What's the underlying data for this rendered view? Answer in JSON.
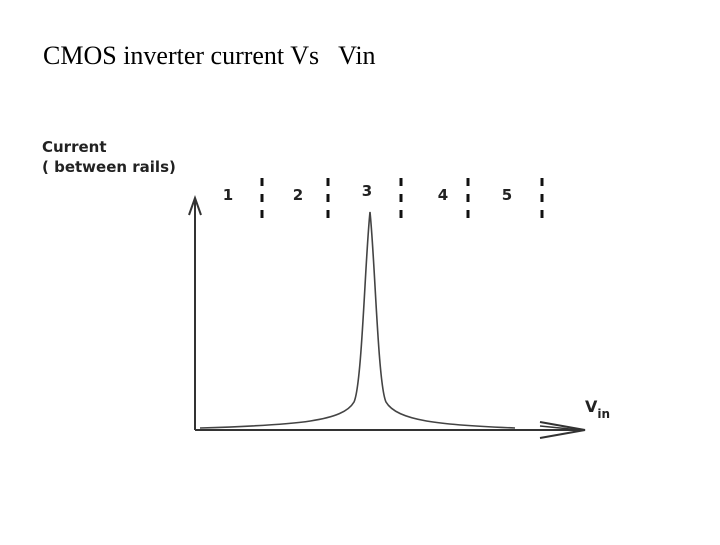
{
  "title": "CMOS inverter current Vs   Vin",
  "y_axis_label": [
    "Current",
    "( between rails)"
  ],
  "x_axis_label": {
    "main": "V",
    "sub": "in"
  },
  "regions": [
    "1",
    "2",
    "3",
    "4",
    "5"
  ]
}
